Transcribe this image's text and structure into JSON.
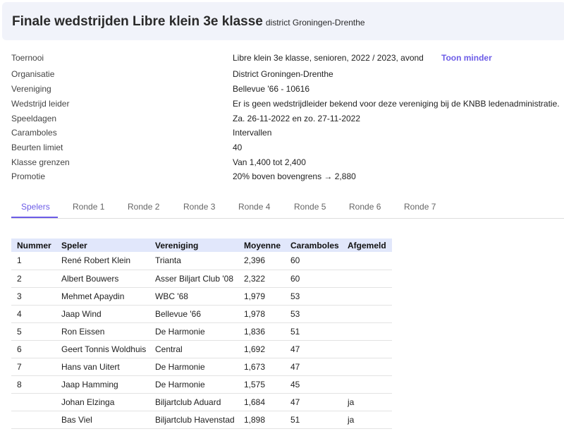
{
  "header": {
    "title": "Finale wedstrijden Libre klein 3e klasse",
    "subtitle": "district Groningen-Drenthe"
  },
  "info": {
    "toggle_label": "Toon minder",
    "rows": [
      {
        "label": "Toernooi",
        "value": "Libre klein 3e klasse, senioren, 2022 / 2023, avond"
      },
      {
        "label": "Organisatie",
        "value": "District Groningen-Drenthe"
      },
      {
        "label": "Vereniging",
        "value": "Bellevue '66 - 10616"
      },
      {
        "label": "Wedstrijd leider",
        "value": "Er is geen wedstrijdleider bekend voor deze vereniging bij de KNBB ledenadministratie."
      },
      {
        "label": "Speeldagen",
        "value": "Za. 26-11-2022 en zo. 27-11-2022"
      },
      {
        "label": "Caramboles",
        "value": "Intervallen"
      },
      {
        "label": "Beurten limiet",
        "value": "40"
      },
      {
        "label": "Klasse grenzen",
        "value": "Van 1,400 tot 2,400"
      },
      {
        "label": "Promotie",
        "value": "20% boven bovengrens → 2,880"
      }
    ]
  },
  "tabs": [
    "Spelers",
    "Ronde 1",
    "Ronde 2",
    "Ronde 3",
    "Ronde 4",
    "Ronde 5",
    "Ronde 6",
    "Ronde 7"
  ],
  "active_tab": "Spelers",
  "accent": "#6c5ce7",
  "table": {
    "headers": [
      "Nummer",
      "Speler",
      "Vereniging",
      "Moyenne",
      "Caramboles",
      "Afgemeld"
    ],
    "rows": [
      [
        "1",
        "René Robert Klein",
        "Trianta",
        "2,396",
        "60",
        ""
      ],
      [
        "2",
        "Albert Bouwers",
        "Asser Biljart Club '08",
        "2,322",
        "60",
        ""
      ],
      [
        "3",
        "Mehmet Apaydin",
        "WBC '68",
        "1,979",
        "53",
        ""
      ],
      [
        "4",
        "Jaap Wind",
        "Bellevue '66",
        "1,978",
        "53",
        ""
      ],
      [
        "5",
        "Ron Eissen",
        "De Harmonie",
        "1,836",
        "51",
        ""
      ],
      [
        "6",
        "Geert Tonnis Woldhuis",
        "Central",
        "1,692",
        "47",
        ""
      ],
      [
        "7",
        "Hans van Uitert",
        "De Harmonie",
        "1,673",
        "47",
        ""
      ],
      [
        "8",
        "Jaap Hamming",
        "De Harmonie",
        "1,575",
        "45",
        ""
      ],
      [
        "",
        "Johan Elzinga",
        "Biljartclub Aduard",
        "1,684",
        "47",
        "ja"
      ],
      [
        "",
        "Bas Viel",
        "Biljartclub Havenstad",
        "1,898",
        "51",
        "ja"
      ]
    ]
  }
}
